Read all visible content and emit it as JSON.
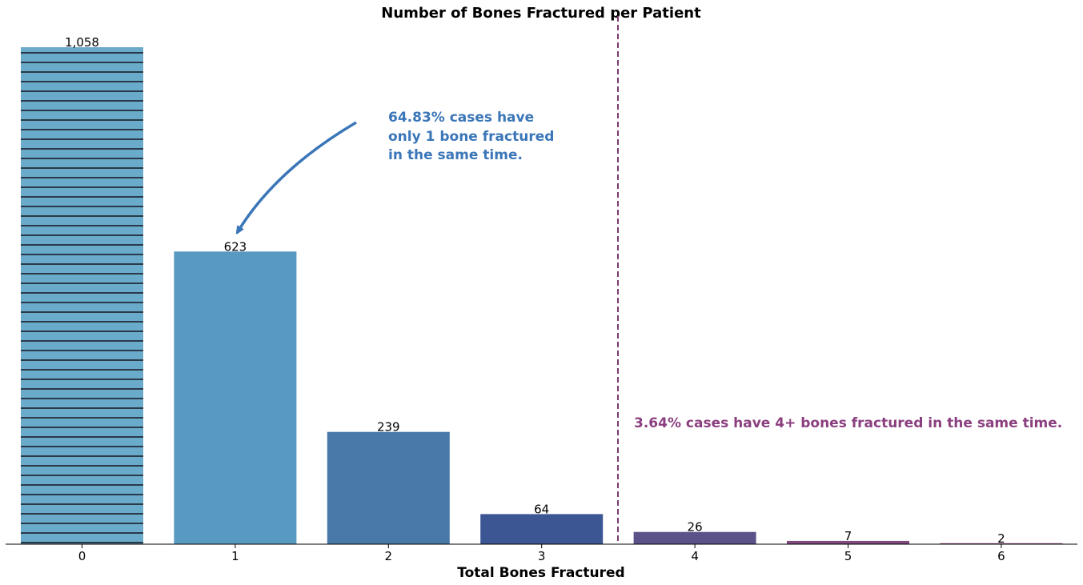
{
  "chart_data": {
    "type": "bar",
    "title": "Number of Bones Fractured per Patient",
    "xlabel": "Total Bones Fractured",
    "ylabel": "",
    "categories": [
      "0",
      "1",
      "2",
      "3",
      "4",
      "5",
      "6"
    ],
    "values": [
      1058,
      623,
      239,
      64,
      26,
      7,
      2
    ],
    "value_labels": [
      "1,058",
      "623",
      "239",
      "64",
      "26",
      "7",
      "2"
    ],
    "colors": [
      "#6aaaca",
      "#5899c2",
      "#4879a9",
      "#3c5694",
      "#5c528a",
      "#7f4a7e",
      "#8a4677"
    ],
    "hatched_category": "0",
    "ylim": [
      0,
      1100
    ],
    "grid": false,
    "divider_between": [
      "3",
      "4"
    ],
    "annotations": [
      {
        "lines": [
          "64.83% cases have",
          "only 1 bone fractured",
          "in the same time."
        ],
        "color": "#3a76b8",
        "points_to": "1"
      },
      {
        "lines": [
          "3.64% cases have 4+ bones fractured in the same time."
        ],
        "color": "#8b3f7f"
      }
    ],
    "divider_color": "#7a3a72"
  }
}
